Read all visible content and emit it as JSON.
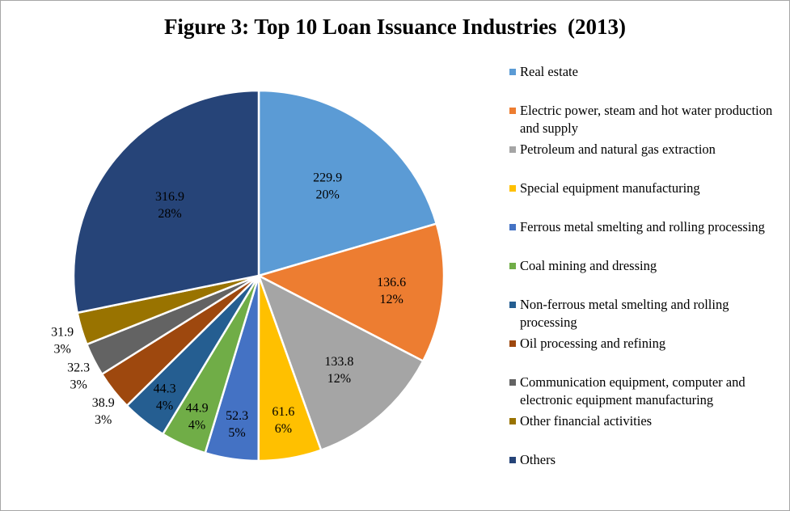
{
  "chart_data": {
    "type": "pie",
    "title": "Figure 3: Top 10 Loan Issuance Industries  (2013)",
    "legend_position": "right",
    "slices": [
      {
        "name": "Real estate",
        "value": 229.9,
        "percent": "20%",
        "color": "#5b9bd5"
      },
      {
        "name": "Electric power, steam and hot water production and supply",
        "value": 136.6,
        "percent": "12%",
        "color": "#ed7d31"
      },
      {
        "name": "Petroleum and natural gas extraction",
        "value": 133.8,
        "percent": "12%",
        "color": "#a5a5a5"
      },
      {
        "name": "Special equipment manufacturing",
        "value": 61.6,
        "percent": "6%",
        "color": "#ffc000"
      },
      {
        "name": "Ferrous metal smelting and rolling processing",
        "value": 52.3,
        "percent": "5%",
        "color": "#4472c4"
      },
      {
        "name": "Coal mining and dressing",
        "value": 44.9,
        "percent": "4%",
        "color": "#70ad47"
      },
      {
        "name": "Non-ferrous metal smelting and rolling processing",
        "value": 44.3,
        "percent": "4%",
        "color": "#255e91"
      },
      {
        "name": "Oil processing and refining",
        "value": 38.9,
        "percent": "3%",
        "color": "#9e480e"
      },
      {
        "name": "Communication equipment, computer and electronic equipment manufacturing",
        "value": 32.3,
        "percent": "3%",
        "color": "#636363"
      },
      {
        "name": "Other financial activities",
        "value": 31.9,
        "percent": "3%",
        "color": "#997300"
      },
      {
        "name": "Others",
        "value": 316.9,
        "percent": "28%",
        "color": "#264478"
      }
    ]
  }
}
